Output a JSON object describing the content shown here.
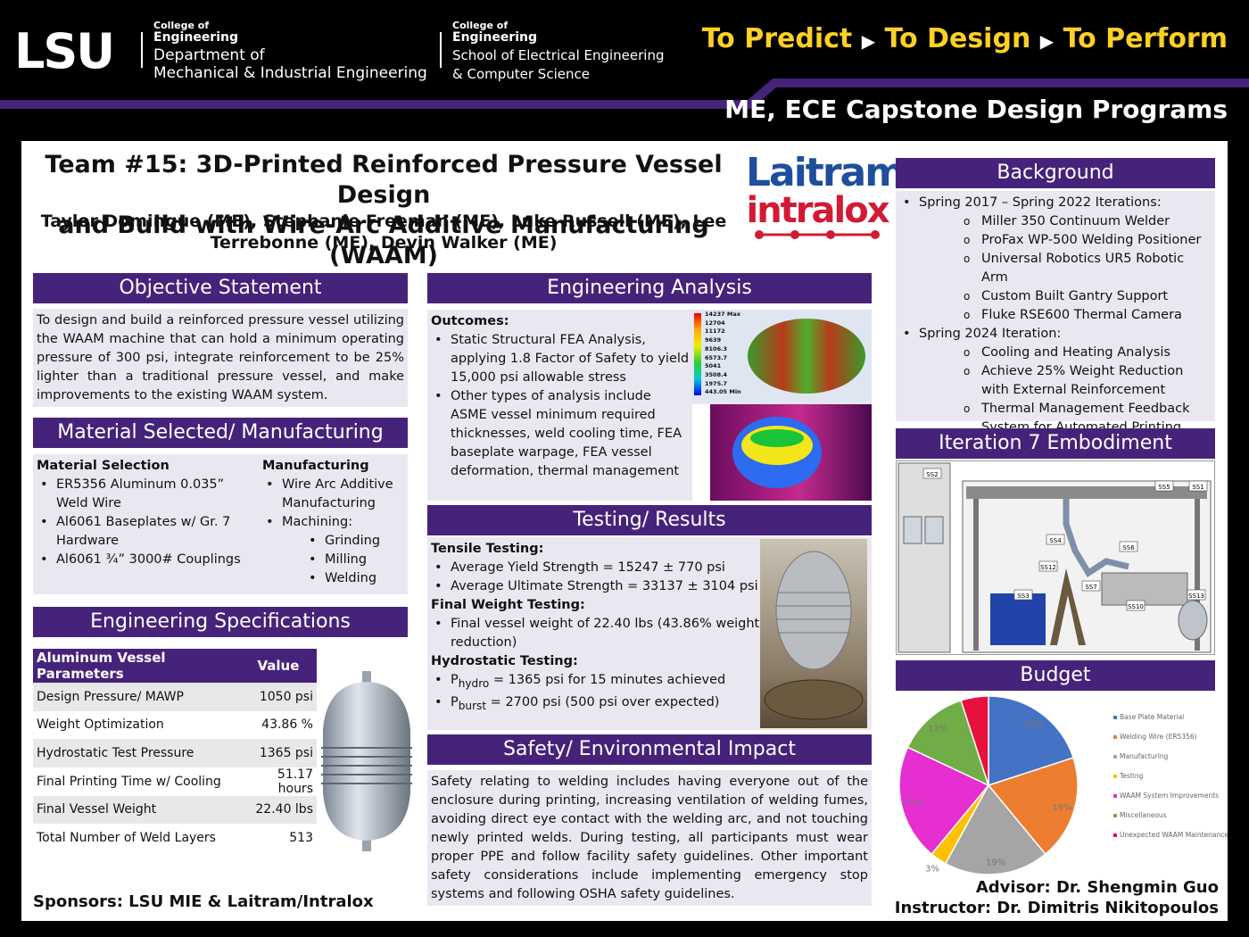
{
  "header": {
    "lsu": "LSU",
    "college_1": "College of",
    "engineering_1": "Engineering",
    "department": [
      "Department of",
      "Mechanical & Industrial Engineering"
    ],
    "college_2": "College of",
    "engineering_2": "Engineering",
    "school": [
      "School of Electrical Engineering",
      "& Computer Science"
    ],
    "tagline": [
      "To Predict",
      "To Design",
      "To Perform"
    ],
    "program": "ME, ECE Capstone Design Programs"
  },
  "title": [
    "Team #15: 3D-Printed Reinforced Pressure Vessel Design",
    "and Build with Wire-Arc Additive Manufacturing (WAAM)"
  ],
  "authors": [
    "Taylor Domingue (ME), Stephanie Freeman (ME), Luke Russell (ME), Lee",
    "Terrebonne (ME), Devin Walker (ME)"
  ],
  "sponsor_logos": [
    "Laitram",
    "intralox"
  ],
  "objective": {
    "heading": "Objective Statement",
    "text": "To design and build a reinforced pressure vessel utilizing the WAAM machine that can hold a minimum operating pressure of 300 psi, integrate reinforcement to be 25% lighter than a traditional pressure vessel, and make improvements to the existing WAAM system."
  },
  "material": {
    "heading": "Material Selected/ Manufacturing",
    "selection": {
      "title": "Material Selection",
      "items": [
        "ER5356 Aluminum 0.035” Weld Wire",
        "Al6061 Baseplates w/ Gr. 7 Hardware",
        "Al6061 ¾” 3000# Couplings"
      ]
    },
    "manufacturing": {
      "title": "Manufacturing",
      "items": [
        "Wire Arc Additive Manufacturing",
        "Machining:"
      ],
      "subitems": [
        "Grinding",
        "Milling",
        "Welding"
      ]
    }
  },
  "specs": {
    "heading": "Engineering Specifications",
    "table": {
      "header": [
        "Aluminum Vessel Parameters",
        "Value"
      ],
      "rows": [
        [
          "Design Pressure/ MAWP",
          "1050 psi"
        ],
        [
          "Weight Optimization",
          "43.86 %"
        ],
        [
          "Hydrostatic Test Pressure",
          "1365 psi"
        ],
        [
          "Final Printing Time w/ Cooling",
          "51.17 hours"
        ],
        [
          "Final Vessel Weight",
          "22.40 lbs"
        ],
        [
          "Total Number of Weld Layers",
          "513"
        ]
      ]
    }
  },
  "analysis": {
    "heading": "Engineering Analysis",
    "outcomes_title": "Outcomes:",
    "items": [
      "Static Structural FEA Analysis, applying 1.8 Factor of Safety to yield 15,000 psi allowable stress",
      "Other types of analysis include ASME vessel minimum required thicknesses, weld cooling time, FEA baseplate warpage, FEA vessel deformation, thermal management"
    ],
    "fea_legend": [
      "14237 Max",
      "12704",
      "11172",
      "9639",
      "8106.3",
      "6573.7",
      "5041",
      "3508.4",
      "1975.7",
      "443.05 Min"
    ]
  },
  "testing": {
    "heading": "Testing/ Results",
    "sections": [
      {
        "title": "Tensile Testing:",
        "items": [
          "Average Yield Strength = 15247 ± 770 psi",
          "Average Ultimate Strength = 33137 ± 3104 psi"
        ]
      },
      {
        "title": "Final Weight Testing:",
        "items": [
          "Final vessel weight of 22.40 lbs (43.86% weight reduction)"
        ]
      },
      {
        "title": "Hydrostatic Testing:",
        "items": [
          [
            "P",
            "hydro",
            " = 1365 psi for 15 minutes achieved"
          ],
          [
            "P",
            "burst",
            " = 2700 psi (500 psi over expected)"
          ]
        ]
      }
    ]
  },
  "safety": {
    "heading": "Safety/ Environmental Impact",
    "text": "Safety relating to welding includes having everyone out of the enclosure during printing, increasing ventilation of welding fumes, avoiding direct eye contact with the welding arc, and not touching newly printed welds. During testing, all participants must wear proper PPE and follow facility safety guidelines. Other important safety considerations include implementing emergency stop systems and following OSHA safety guidelines."
  },
  "background": {
    "heading": "Background",
    "groups": [
      {
        "title": "Spring 2017 – Spring 2022 Iterations:",
        "items": [
          "Miller 350 Continuum Welder",
          "ProFax WP-500 Welding Positioner",
          "Universal Robotics UR5 Robotic Arm",
          "Custom Built Gantry Support",
          "Fluke RSE600 Thermal Camera"
        ]
      },
      {
        "title": "Spring 2024 Iteration:",
        "items": [
          "Cooling and Heating Analysis",
          "Achieve 25% Weight Reduction with External Reinforcement",
          "Thermal Management Feedback System for Automated Printing"
        ]
      }
    ]
  },
  "embodiment": {
    "heading": "Iteration 7 Embodiment",
    "labels": [
      "SS2",
      "SS5",
      "SS1",
      "SS4",
      "SS6",
      "SS12",
      "SS3",
      "SS7",
      "SS10",
      "SS13"
    ]
  },
  "budget": {
    "heading": "Budget",
    "categories": [
      "Base Plate Material",
      "Welding Wire (ER5356)",
      "Manufacturing",
      "Testing",
      "WAAM System Improvements",
      "Miscellaneous",
      "Unexpected WAAM Maintenance"
    ],
    "values": [
      20,
      19,
      19,
      3,
      21,
      13,
      5
    ],
    "value_labels": [
      "20%",
      "19%",
      "19%",
      "3%",
      "21%",
      "13%",
      "5%"
    ],
    "colors": [
      "#4472c4",
      "#ed7d31",
      "#a5a5a5",
      "#ffc000",
      "#e62fd0",
      "#70ad47",
      "#e8113b"
    ]
  },
  "sponsors": "Sponsors: LSU MIE & Laitram/Intralox",
  "advisor": "Advisor: Dr. Shengmin Guo",
  "instructor": "Instructor: Dr. Dimitris Nikitopoulos"
}
